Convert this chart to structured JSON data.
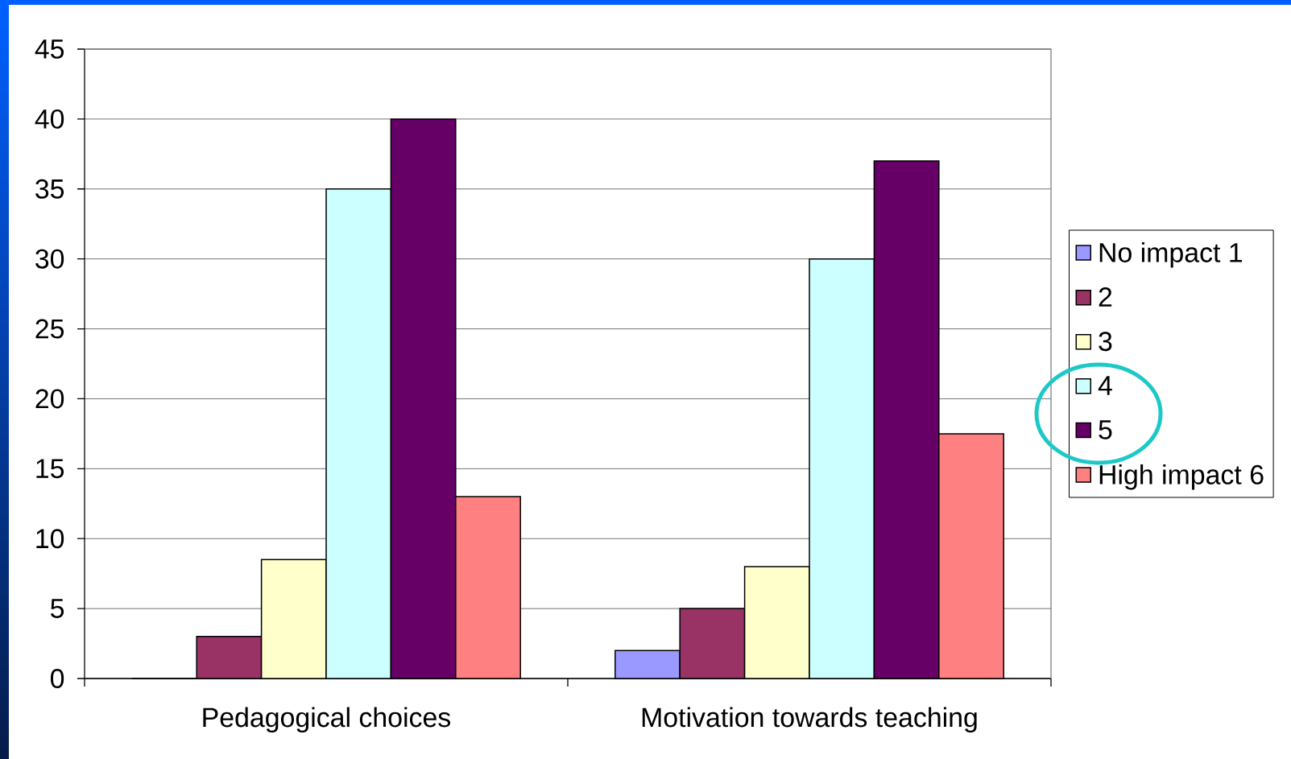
{
  "chart_data": {
    "type": "bar",
    "categories": [
      "Pedagogical choices",
      "Motivation towards teaching"
    ],
    "series": [
      {
        "name": "No impact 1",
        "color": "#9999ff",
        "values": [
          0,
          2
        ]
      },
      {
        "name": "2",
        "color": "#993366",
        "values": [
          3,
          5
        ]
      },
      {
        "name": "3",
        "color": "#ffffcc",
        "values": [
          8.5,
          8
        ]
      },
      {
        "name": "4",
        "color": "#ccffff",
        "values": [
          35,
          30
        ]
      },
      {
        "name": "5",
        "color": "#660066",
        "values": [
          40,
          37
        ]
      },
      {
        "name": "High impact 6",
        "color": "#ff8080",
        "values": [
          13,
          17.5
        ]
      }
    ],
    "ylim": [
      0,
      45
    ],
    "yticks": [
      0,
      5,
      10,
      15,
      20,
      25,
      30,
      35,
      40,
      45
    ],
    "grid": "y",
    "legend": "right"
  }
}
